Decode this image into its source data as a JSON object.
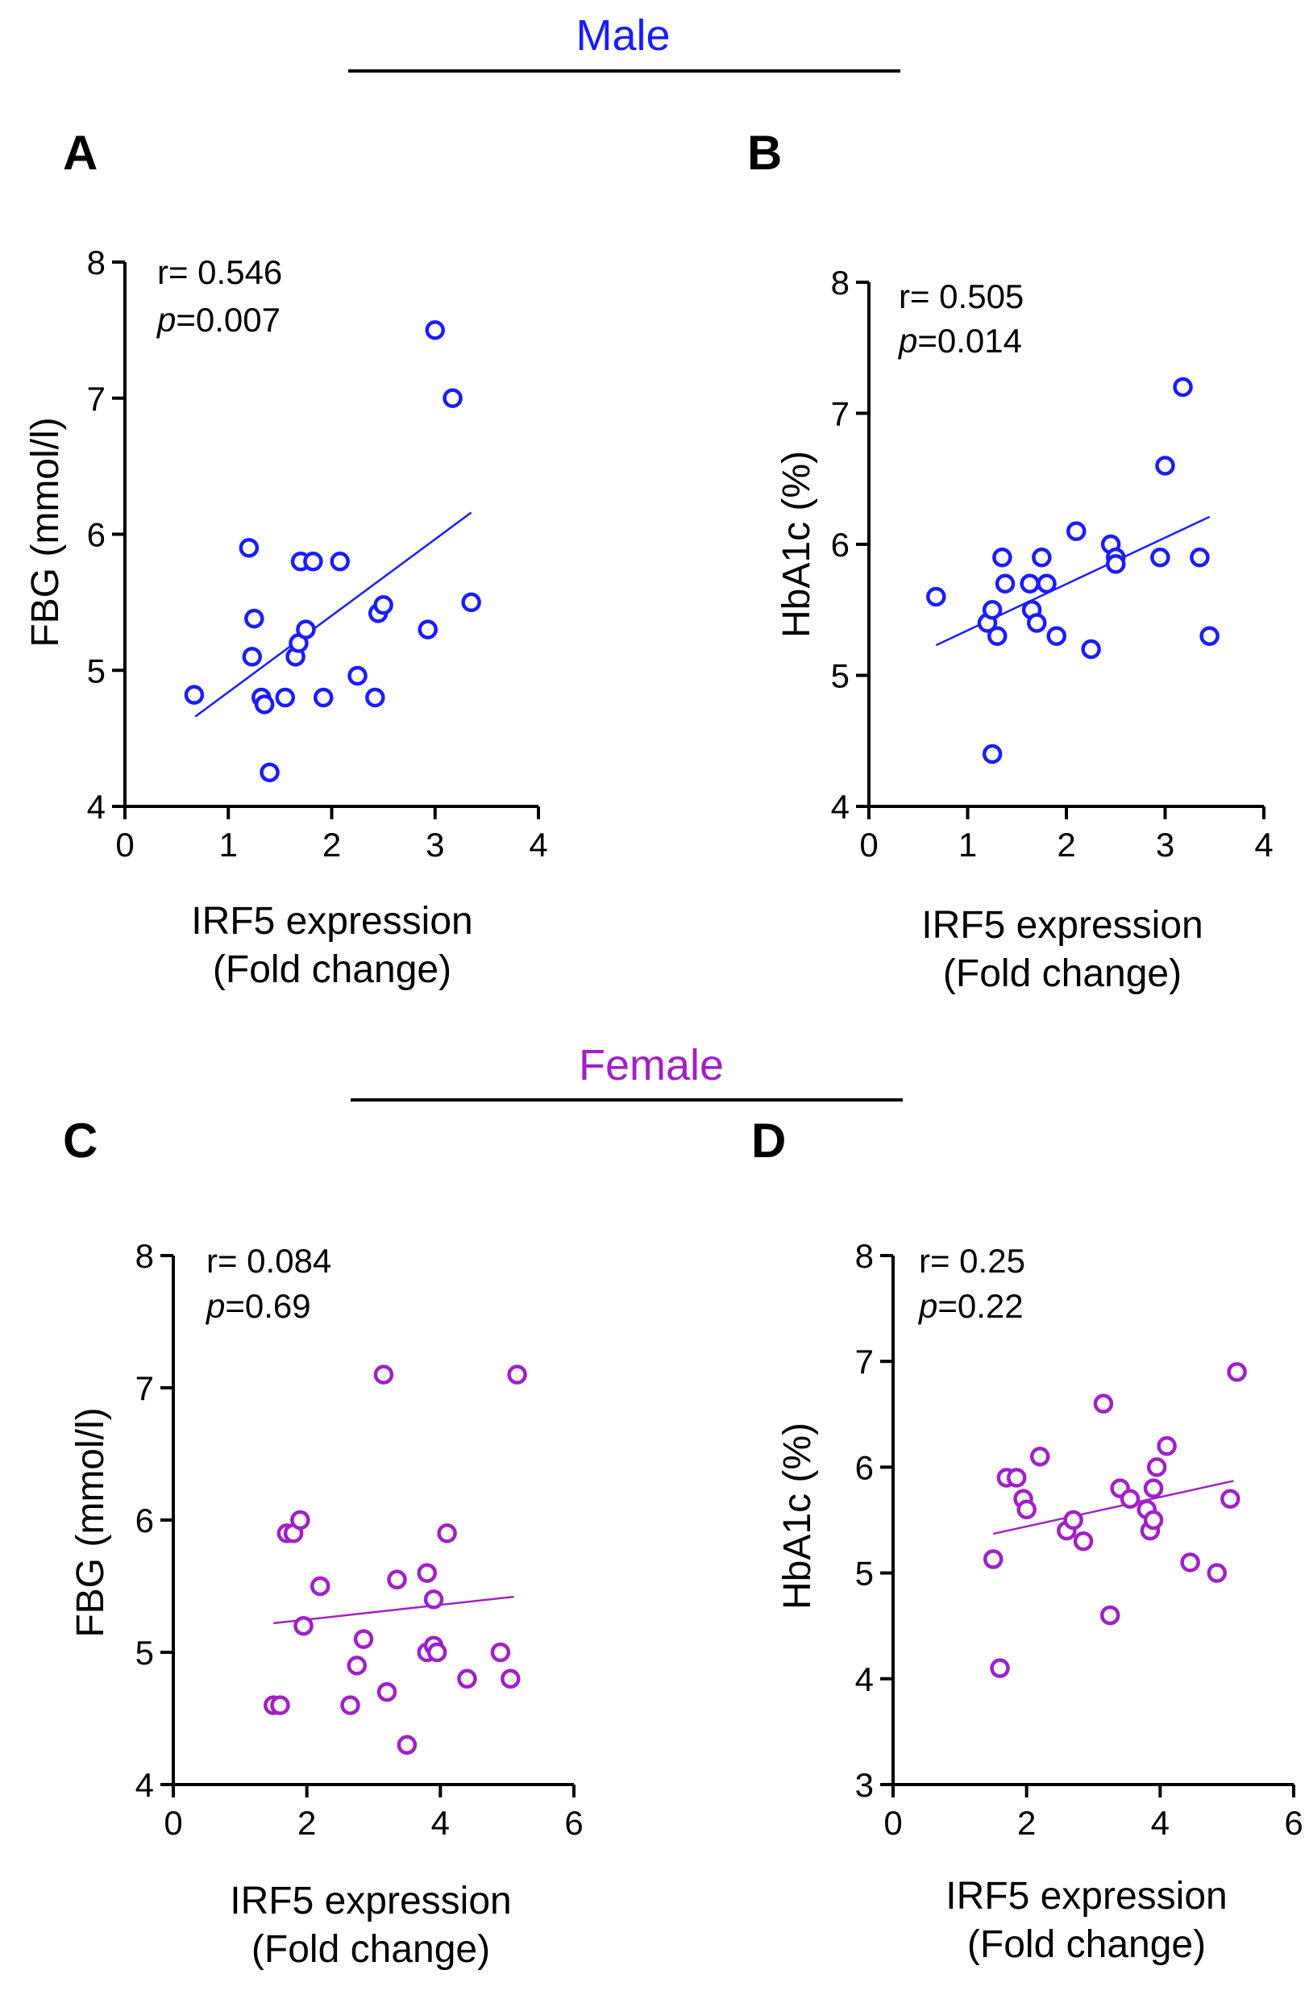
{
  "groups": [
    {
      "label": "Male",
      "color": "#1c1cff"
    },
    {
      "label": "Female",
      "color": "#a020c8"
    }
  ],
  "chart_data": [
    {
      "panel": "A",
      "group": "Male",
      "type": "scatter",
      "xlabel": [
        "IRF5  expression",
        "(Fold change)"
      ],
      "ylabel": "FBG (mmol/l)",
      "xlim": [
        0,
        4
      ],
      "ylim": [
        4,
        8
      ],
      "xticks": [
        0,
        1,
        2,
        3,
        4
      ],
      "yticks": [
        4,
        5,
        6,
        7,
        8
      ],
      "stats": {
        "r": "r= 0.546",
        "p_label": "p",
        "p_value": "=0.007"
      },
      "fit": {
        "x": [
          0.68,
          3.35
        ],
        "y": [
          4.66,
          6.16
        ]
      },
      "points": [
        [
          0.67,
          4.82
        ],
        [
          1.2,
          5.9
        ],
        [
          1.23,
          5.1
        ],
        [
          1.25,
          5.38
        ],
        [
          1.32,
          4.8
        ],
        [
          1.35,
          4.75
        ],
        [
          1.4,
          4.25
        ],
        [
          1.55,
          4.8
        ],
        [
          1.65,
          5.1
        ],
        [
          1.68,
          5.2
        ],
        [
          1.7,
          5.8
        ],
        [
          1.75,
          5.3
        ],
        [
          1.82,
          5.8
        ],
        [
          1.92,
          4.8
        ],
        [
          2.08,
          5.8
        ],
        [
          2.25,
          4.96
        ],
        [
          2.42,
          4.8
        ],
        [
          2.45,
          5.42
        ],
        [
          2.5,
          5.48
        ],
        [
          2.93,
          5.3
        ],
        [
          3.0,
          7.5
        ],
        [
          3.17,
          7.0
        ],
        [
          3.35,
          5.5
        ]
      ]
    },
    {
      "panel": "B",
      "group": "Male",
      "type": "scatter",
      "xlabel": [
        "IRF5  expression",
        "(Fold change)"
      ],
      "ylabel": "HbA1c (%)",
      "xlim": [
        0,
        4
      ],
      "ylim": [
        4,
        8
      ],
      "xticks": [
        0,
        1,
        2,
        3,
        4
      ],
      "yticks": [
        4,
        5,
        6,
        7,
        8
      ],
      "stats": {
        "r": "r= 0.505",
        "p_label": "p",
        "p_value": "=0.014"
      },
      "fit": {
        "x": [
          0.68,
          3.45
        ],
        "y": [
          5.23,
          6.21
        ]
      },
      "points": [
        [
          0.68,
          5.6
        ],
        [
          1.2,
          5.4
        ],
        [
          1.25,
          5.5
        ],
        [
          1.25,
          4.4
        ],
        [
          1.3,
          5.3
        ],
        [
          1.35,
          5.9
        ],
        [
          1.38,
          5.7
        ],
        [
          1.63,
          5.7
        ],
        [
          1.65,
          5.5
        ],
        [
          1.7,
          5.4
        ],
        [
          1.75,
          5.9
        ],
        [
          1.8,
          5.7
        ],
        [
          1.9,
          5.3
        ],
        [
          2.1,
          6.1
        ],
        [
          2.25,
          5.2
        ],
        [
          2.45,
          6.0
        ],
        [
          2.5,
          5.9
        ],
        [
          2.5,
          5.85
        ],
        [
          2.95,
          5.9
        ],
        [
          3.0,
          6.6
        ],
        [
          3.18,
          7.2
        ],
        [
          3.35,
          5.9
        ],
        [
          3.45,
          5.3
        ]
      ]
    },
    {
      "panel": "C",
      "group": "Female",
      "type": "scatter",
      "xlabel": [
        "IRF5  expression",
        "(Fold change)"
      ],
      "ylabel": "FBG (mmol/l)",
      "xlim": [
        0,
        6
      ],
      "ylim": [
        4,
        8
      ],
      "xticks": [
        0,
        2,
        4,
        6
      ],
      "yticks": [
        4,
        5,
        6,
        7,
        8
      ],
      "stats": {
        "r": "r= 0.084",
        "p_label": "p",
        "p_value": "=0.69"
      },
      "fit": {
        "x": [
          1.5,
          5.1
        ],
        "y": [
          5.22,
          5.42
        ]
      },
      "points": [
        [
          1.5,
          4.6
        ],
        [
          1.6,
          4.6
        ],
        [
          1.7,
          5.9
        ],
        [
          1.8,
          5.9
        ],
        [
          1.9,
          6.0
        ],
        [
          1.95,
          5.2
        ],
        [
          2.2,
          5.5
        ],
        [
          2.65,
          4.6
        ],
        [
          2.75,
          4.9
        ],
        [
          2.85,
          5.1
        ],
        [
          3.15,
          7.1
        ],
        [
          3.2,
          4.7
        ],
        [
          3.35,
          5.55
        ],
        [
          3.5,
          4.3
        ],
        [
          3.8,
          5.0
        ],
        [
          3.8,
          5.6
        ],
        [
          3.9,
          5.4
        ],
        [
          3.9,
          5.05
        ],
        [
          3.95,
          5.0
        ],
        [
          4.1,
          5.9
        ],
        [
          4.4,
          4.8
        ],
        [
          4.9,
          5.0
        ],
        [
          5.05,
          4.8
        ],
        [
          5.15,
          7.1
        ]
      ]
    },
    {
      "panel": "D",
      "group": "Female",
      "type": "scatter",
      "xlabel": [
        "IRF5  expression",
        "(Fold change)"
      ],
      "ylabel": "HbA1c (%)",
      "xlim": [
        0,
        6
      ],
      "ylim": [
        3,
        8
      ],
      "xticks": [
        0,
        2,
        4,
        6
      ],
      "yticks": [
        3,
        4,
        5,
        6,
        7,
        8
      ],
      "stats": {
        "r": "r= 0.25",
        "p_label": "p",
        "p_value": "=0.22"
      },
      "fit": {
        "x": [
          1.5,
          5.1
        ],
        "y": [
          5.37,
          5.87
        ]
      },
      "points": [
        [
          1.5,
          5.13
        ],
        [
          1.6,
          4.1
        ],
        [
          1.7,
          5.9
        ],
        [
          1.85,
          5.9
        ],
        [
          1.95,
          5.7
        ],
        [
          2.0,
          5.6
        ],
        [
          2.2,
          6.1
        ],
        [
          2.6,
          5.4
        ],
        [
          2.7,
          5.5
        ],
        [
          2.85,
          5.3
        ],
        [
          3.15,
          6.6
        ],
        [
          3.25,
          4.6
        ],
        [
          3.4,
          5.8
        ],
        [
          3.55,
          5.7
        ],
        [
          3.8,
          5.6
        ],
        [
          3.85,
          5.4
        ],
        [
          3.9,
          5.8
        ],
        [
          3.9,
          5.5
        ],
        [
          3.95,
          6.0
        ],
        [
          4.1,
          6.2
        ],
        [
          4.45,
          5.1
        ],
        [
          4.85,
          5.0
        ],
        [
          5.05,
          5.7
        ],
        [
          5.15,
          6.9
        ]
      ]
    }
  ]
}
